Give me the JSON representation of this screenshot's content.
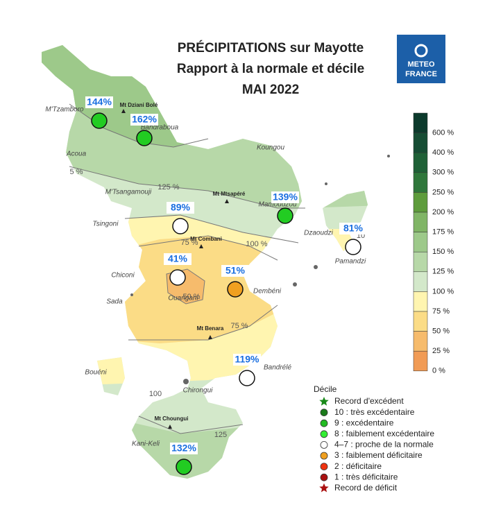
{
  "header": {
    "title_lines": [
      "PRÉCIPITATIONS sur Mayotte",
      "Rapport à la normale et décile",
      "MAI 2022"
    ],
    "logo": [
      "METEO",
      "FRANCE"
    ]
  },
  "colorbar": {
    "labels": [
      "600 %",
      "400 %",
      "300 %",
      "250 %",
      "200 %",
      "175 %",
      "150 %",
      "125 %",
      "100 %",
      "75 %",
      "50 %",
      "25 %",
      "0 %"
    ],
    "colors": [
      "#0c3a2c",
      "#164d34",
      "#1f6137",
      "#2f773b",
      "#5e9c3c",
      "#80b566",
      "#9dc98a",
      "#b7d8a8",
      "#d3e8ca",
      "#fff5b0",
      "#fbdc86",
      "#f6bb6c",
      "#f19b55"
    ]
  },
  "stations": [
    {
      "label": "144%",
      "color": "#22cc22"
    },
    {
      "label": "162%",
      "color": "#22cc22"
    },
    {
      "label": "139%",
      "color": "#22cc22"
    },
    {
      "label": "89%",
      "color": "#ffffff"
    },
    {
      "label": "81%",
      "color": "#ffffff"
    },
    {
      "label": "41%",
      "color": "#ffffff"
    },
    {
      "label": "51%",
      "color": "#f0a020"
    },
    {
      "label": "119%",
      "color": "#ffffff"
    },
    {
      "label": "132%",
      "color": "#22cc22"
    }
  ],
  "places": [
    "M'Tzamboro",
    "Acoua",
    "Bandraboua",
    "Koungou",
    "M'Tsangamouji",
    "Mamoudzou",
    "Tsingoni",
    "Dzaoudzi",
    "Pamandzi",
    "Chiconi",
    "Sada",
    "Dembéni",
    "Ouangani",
    "Bandrélé",
    "Bouéni",
    "Chirongui",
    "Kani-Keli"
  ],
  "mountains": [
    "Mt Dziani Bolé",
    "Mt Mtsapéré",
    "Mt Combani",
    "Mt Benara",
    "Mt Choungui"
  ],
  "contour_labels": [
    "5 %",
    "125 %",
    "100 %",
    "75 %",
    "50 %",
    "75 %",
    "100",
    "125",
    "10"
  ],
  "legend": {
    "title": "Décile",
    "items": [
      {
        "label": "Record d'excédent",
        "marker": "star",
        "color": "#1a8a1a"
      },
      {
        "label": "10 : très excédentaire",
        "marker": "circle",
        "color": "#1b7a1b"
      },
      {
        "label": "9 : excédentaire",
        "marker": "circle",
        "color": "#22bb22"
      },
      {
        "label": "8 : faiblement excédentaire",
        "marker": "circle",
        "color": "#33ee33"
      },
      {
        "label": "4–7 : proche de la normale",
        "marker": "circle",
        "color": "#ffffff"
      },
      {
        "label": "3 : faiblement déficitaire",
        "marker": "circle",
        "color": "#f0a020"
      },
      {
        "label": "2 : déficitaire",
        "marker": "circle",
        "color": "#ee3311"
      },
      {
        "label": "1 : très déficitaire",
        "marker": "circle",
        "color": "#aa1111"
      },
      {
        "label": "Record de déficit",
        "marker": "star",
        "color": "#aa1111"
      }
    ]
  }
}
